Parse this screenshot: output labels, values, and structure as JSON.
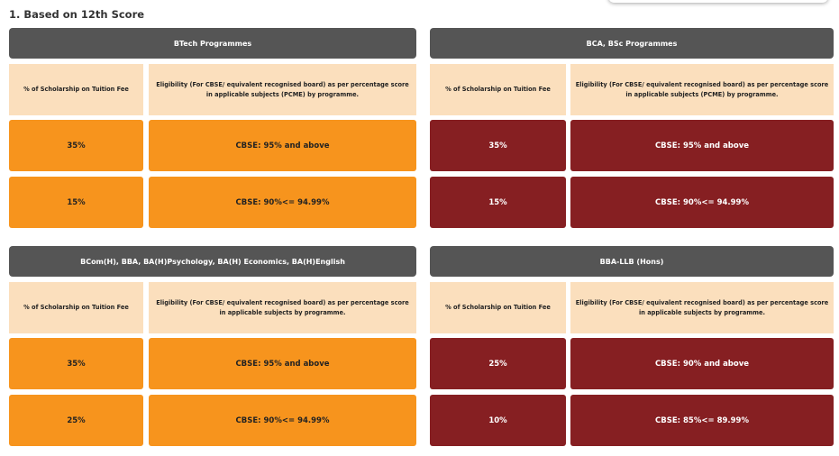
{
  "section_title": "1. Based on 12th Score",
  "colors": {
    "header": "#555555",
    "subheader": "#fbdfbd",
    "orange": "#f7941d",
    "maroon": "#861f22"
  },
  "tables": [
    {
      "title": "BTech Programmes",
      "col1": "% of Scholarship on Tuition Fee",
      "col2": "Eligibility (For CBSE/ equivalent recognised board) as per percentage score in applicable subjects (PCME) by programme.",
      "rows": [
        {
          "pct": "35%",
          "elig": "CBSE: 95% and above"
        },
        {
          "pct": "15%",
          "elig": "CBSE: 90%<= 94.99%"
        }
      ]
    },
    {
      "title": "BCA, BSc Programmes",
      "col1": "% of Scholarship on Tuition Fee",
      "col2": "Eligibility (For CBSE/ equivalent recognised board) as per percentage score in applicable subjects (PCME) by programme.",
      "rows": [
        {
          "pct": "35%",
          "elig": "CBSE: 95% and above"
        },
        {
          "pct": "15%",
          "elig": "CBSE: 90%<= 94.99%"
        }
      ]
    },
    {
      "title": "BCom(H), BBA, BA(H)Psychology, BA(H) Economics, BA(H)English",
      "col1": "% of Scholarship on Tuition Fee",
      "col2": "Eligibility (For CBSE/ equivalent recognised board) as per percentage score in applicable subjects by programme.",
      "rows": [
        {
          "pct": "35%",
          "elig": "CBSE: 95% and above"
        },
        {
          "pct": "25%",
          "elig": "CBSE: 90%<= 94.99%"
        }
      ]
    },
    {
      "title": "BBA-LLB (Hons)",
      "col1": "% of Scholarship on Tuition Fee",
      "col2": "Eligibility (For CBSE/ equivalent recognised board) as per percentage score in applicable subjects by programme.",
      "rows": [
        {
          "pct": "25%",
          "elig": "CBSE: 90% and above"
        },
        {
          "pct": "10%",
          "elig": "CBSE: 85%<= 89.99%"
        }
      ]
    }
  ]
}
